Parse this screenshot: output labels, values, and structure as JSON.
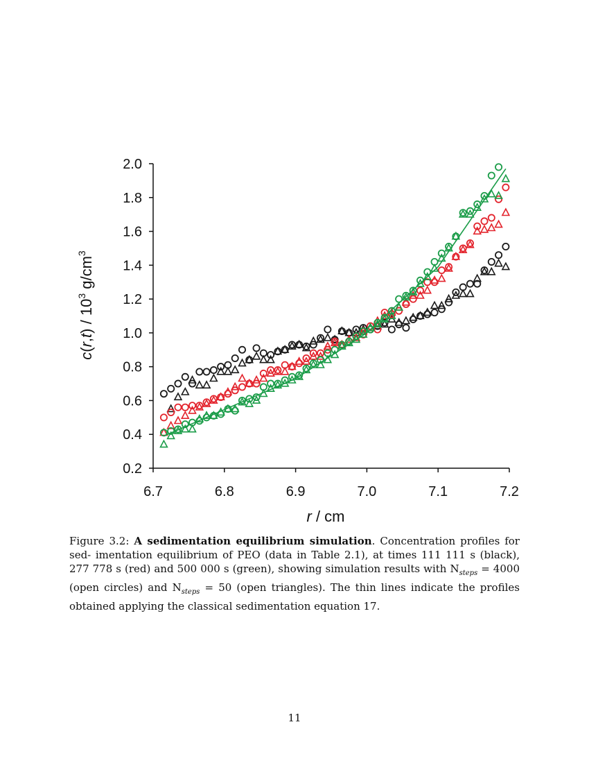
{
  "chart_data": {
    "type": "scatter",
    "xlabel": "r / cm",
    "ylabel": "c(r,t) / 10^3 g/cm^3",
    "x_ticks": [
      "6.7",
      "6.8",
      "6.9",
      "7.0",
      "7.1",
      "7.2"
    ],
    "y_ticks": [
      "0.2",
      "0.4",
      "0.6",
      "0.8",
      "1.0",
      "1.2",
      "1.4",
      "1.6",
      "1.8",
      "2.0"
    ],
    "xlim": [
      6.7,
      7.2
    ],
    "ylim": [
      0.2,
      2.0
    ],
    "grid": false,
    "series": [
      {
        "name": "111 111 s, N steps = 4000 (open circles)",
        "color": "#1a1a1a",
        "marker": "circle",
        "x": [
          6.715,
          6.725,
          6.735,
          6.745,
          6.755,
          6.765,
          6.775,
          6.785,
          6.795,
          6.805,
          6.815,
          6.825,
          6.835,
          6.845,
          6.855,
          6.865,
          6.875,
          6.885,
          6.895,
          6.905,
          6.915,
          6.925,
          6.935,
          6.945,
          6.955,
          6.965,
          6.975,
          6.985,
          6.995,
          7.005,
          7.015,
          7.025,
          7.035,
          7.045,
          7.055,
          7.065,
          7.075,
          7.085,
          7.095,
          7.105,
          7.115,
          7.125,
          7.135,
          7.145,
          7.155,
          7.165,
          7.175,
          7.185,
          7.195
        ],
        "y": [
          0.64,
          0.67,
          0.7,
          0.74,
          0.7,
          0.77,
          0.77,
          0.78,
          0.8,
          0.81,
          0.85,
          0.9,
          0.84,
          0.91,
          0.88,
          0.87,
          0.89,
          0.9,
          0.93,
          0.93,
          0.92,
          0.93,
          0.97,
          1.02,
          0.96,
          1.01,
          1.0,
          1.02,
          1.03,
          1.02,
          1.04,
          1.06,
          1.02,
          1.05,
          1.03,
          1.08,
          1.1,
          1.11,
          1.12,
          1.14,
          1.18,
          1.24,
          1.27,
          1.29,
          1.29,
          1.37,
          1.42,
          1.46,
          1.51
        ]
      },
      {
        "name": "111 111 s, N steps = 50 (open triangles)",
        "color": "#1a1a1a",
        "marker": "triangle",
        "x": [
          6.725,
          6.735,
          6.745,
          6.755,
          6.765,
          6.775,
          6.785,
          6.795,
          6.805,
          6.815,
          6.825,
          6.835,
          6.845,
          6.855,
          6.865,
          6.875,
          6.885,
          6.895,
          6.905,
          6.915,
          6.925,
          6.935,
          6.945,
          6.955,
          6.965,
          6.975,
          6.985,
          6.995,
          7.005,
          7.015,
          7.025,
          7.035,
          7.045,
          7.055,
          7.065,
          7.075,
          7.085,
          7.095,
          7.105,
          7.115,
          7.125,
          7.135,
          7.145,
          7.155,
          7.165,
          7.175,
          7.185,
          7.195
        ],
        "y": [
          0.55,
          0.62,
          0.65,
          0.72,
          0.69,
          0.69,
          0.73,
          0.77,
          0.77,
          0.78,
          0.82,
          0.84,
          0.86,
          0.84,
          0.84,
          0.89,
          0.9,
          0.92,
          0.93,
          0.91,
          0.95,
          0.96,
          0.97,
          0.96,
          1.01,
          1.0,
          1.0,
          1.02,
          1.03,
          1.04,
          1.05,
          1.08,
          1.06,
          1.07,
          1.09,
          1.1,
          1.12,
          1.16,
          1.16,
          1.2,
          1.22,
          1.23,
          1.23,
          1.32,
          1.36,
          1.36,
          1.41,
          1.39
        ]
      },
      {
        "name": "277 778 s, N steps = 4000 (open circles)",
        "color": "#e3232c",
        "marker": "circle",
        "x": [
          6.715,
          6.725,
          6.735,
          6.745,
          6.755,
          6.765,
          6.775,
          6.785,
          6.795,
          6.805,
          6.815,
          6.825,
          6.835,
          6.845,
          6.855,
          6.865,
          6.875,
          6.885,
          6.895,
          6.905,
          6.915,
          6.925,
          6.935,
          6.945,
          6.955,
          6.965,
          6.975,
          6.985,
          6.995,
          7.005,
          7.015,
          7.025,
          7.035,
          7.045,
          7.055,
          7.065,
          7.075,
          7.085,
          7.095,
          7.105,
          7.115,
          7.125,
          7.135,
          7.145,
          7.155,
          7.165,
          7.175,
          7.185,
          7.195
        ],
        "y": [
          0.5,
          0.53,
          0.56,
          0.56,
          0.57,
          0.57,
          0.59,
          0.61,
          0.62,
          0.64,
          0.66,
          0.68,
          0.7,
          0.7,
          0.76,
          0.78,
          0.78,
          0.81,
          0.8,
          0.82,
          0.85,
          0.88,
          0.88,
          0.9,
          0.95,
          0.93,
          0.95,
          0.98,
          0.99,
          1.04,
          1.02,
          1.12,
          1.11,
          1.13,
          1.17,
          1.2,
          1.25,
          1.3,
          1.3,
          1.37,
          1.39,
          1.45,
          1.5,
          1.53,
          1.63,
          1.66,
          1.68,
          1.79,
          1.86
        ]
      },
      {
        "name": "277 778 s, N steps = 50 (open triangles)",
        "color": "#e3232c",
        "marker": "triangle",
        "x": [
          6.715,
          6.725,
          6.735,
          6.745,
          6.755,
          6.765,
          6.775,
          6.785,
          6.795,
          6.805,
          6.815,
          6.825,
          6.835,
          6.845,
          6.855,
          6.865,
          6.875,
          6.885,
          6.895,
          6.905,
          6.915,
          6.925,
          6.935,
          6.945,
          6.955,
          6.965,
          6.975,
          6.985,
          6.995,
          7.005,
          7.015,
          7.025,
          7.035,
          7.045,
          7.055,
          7.065,
          7.075,
          7.085,
          7.095,
          7.105,
          7.115,
          7.125,
          7.135,
          7.145,
          7.155,
          7.165,
          7.175,
          7.185,
          7.195
        ],
        "y": [
          0.41,
          0.45,
          0.48,
          0.51,
          0.54,
          0.56,
          0.58,
          0.6,
          0.62,
          0.65,
          0.68,
          0.73,
          0.7,
          0.72,
          0.73,
          0.76,
          0.77,
          0.77,
          0.8,
          0.83,
          0.83,
          0.86,
          0.86,
          0.92,
          0.94,
          0.93,
          0.96,
          0.97,
          1.01,
          1.03,
          1.07,
          1.1,
          1.12,
          1.15,
          1.18,
          1.22,
          1.22,
          1.25,
          1.31,
          1.32,
          1.38,
          1.45,
          1.49,
          1.52,
          1.6,
          1.61,
          1.62,
          1.64,
          1.71
        ]
      },
      {
        "name": "500 000 s, N steps = 4000 (open circles)",
        "color": "#1a9c48",
        "marker": "circle",
        "x": [
          6.715,
          6.725,
          6.735,
          6.745,
          6.755,
          6.765,
          6.775,
          6.785,
          6.795,
          6.805,
          6.815,
          6.825,
          6.835,
          6.845,
          6.855,
          6.865,
          6.875,
          6.885,
          6.895,
          6.905,
          6.915,
          6.925,
          6.935,
          6.945,
          6.955,
          6.965,
          6.975,
          6.985,
          6.995,
          7.005,
          7.015,
          7.025,
          7.035,
          7.045,
          7.055,
          7.065,
          7.075,
          7.085,
          7.095,
          7.105,
          7.115,
          7.125,
          7.135,
          7.145,
          7.155,
          7.165,
          7.175,
          7.185
        ],
        "y": [
          0.41,
          0.42,
          0.43,
          0.46,
          0.47,
          0.48,
          0.5,
          0.51,
          0.52,
          0.55,
          0.54,
          0.6,
          0.61,
          0.62,
          0.68,
          0.7,
          0.7,
          0.72,
          0.74,
          0.75,
          0.79,
          0.82,
          0.84,
          0.88,
          0.9,
          0.93,
          0.95,
          0.98,
          1.01,
          1.02,
          1.06,
          1.09,
          1.13,
          1.2,
          1.22,
          1.25,
          1.31,
          1.36,
          1.42,
          1.47,
          1.51,
          1.57,
          1.71,
          1.72,
          1.76,
          1.81,
          1.93,
          1.98
        ]
      },
      {
        "name": "500 000 s, N steps = 50 (open triangles)",
        "color": "#1a9c48",
        "marker": "triangle",
        "x": [
          6.715,
          6.725,
          6.735,
          6.745,
          6.755,
          6.765,
          6.775,
          6.785,
          6.795,
          6.805,
          6.815,
          6.825,
          6.835,
          6.845,
          6.855,
          6.865,
          6.875,
          6.885,
          6.895,
          6.905,
          6.915,
          6.925,
          6.935,
          6.945,
          6.955,
          6.965,
          6.975,
          6.985,
          6.995,
          7.005,
          7.015,
          7.025,
          7.035,
          7.045,
          7.055,
          7.065,
          7.075,
          7.085,
          7.095,
          7.105,
          7.115,
          7.125,
          7.135,
          7.145,
          7.155,
          7.165,
          7.175,
          7.185,
          7.195
        ],
        "y": [
          0.34,
          0.39,
          0.42,
          0.43,
          0.43,
          0.49,
          0.51,
          0.51,
          0.53,
          0.55,
          0.55,
          0.59,
          0.58,
          0.6,
          0.64,
          0.67,
          0.69,
          0.7,
          0.72,
          0.74,
          0.78,
          0.81,
          0.81,
          0.84,
          0.87,
          0.92,
          0.94,
          0.96,
          0.99,
          1.03,
          1.05,
          1.08,
          1.1,
          1.15,
          1.21,
          1.24,
          1.29,
          1.33,
          1.38,
          1.44,
          1.5,
          1.57,
          1.7,
          1.7,
          1.74,
          1.79,
          1.82,
          1.81,
          1.91
        ]
      },
      {
        "name": "classical sedimentation equation (thin line)",
        "color": "#1a9c48",
        "marker": "line",
        "x": [
          6.715,
          6.9,
          7.0,
          7.1,
          7.195
        ],
        "y": [
          0.39,
          0.73,
          1.0,
          1.39,
          1.97
        ]
      }
    ]
  },
  "caption": {
    "label": "Figure 3.2:",
    "title": "A sedimentation equilibrium simulation",
    "line1": ". Concentration profiles for sed-",
    "line2": "imentation equilibrium of PEO (data in Table 2.1), at times 111 111 s (black), 277 778 s",
    "line3a": "(red) and 500 000 s (green), showing simulation results with N",
    "line3sub": "steps",
    "line3b": " = 4000 (open circles)",
    "line4a": "and N",
    "line4sub": "steps",
    "line4b": " = 50 (open triangles). The thin lines indicate the profiles obtained applying the",
    "line5": "classical sedimentation equation 17."
  },
  "page_number": "11"
}
